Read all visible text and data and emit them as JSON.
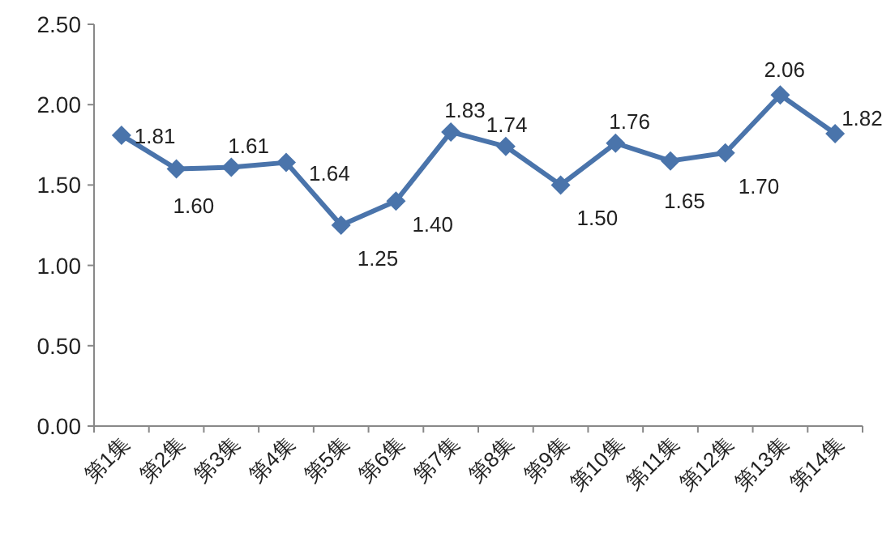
{
  "chart_data": {
    "type": "line",
    "categories": [
      "第1集",
      "第2集",
      "第3集",
      "第4集",
      "第5集",
      "第6集",
      "第7集",
      "第8集",
      "第9集",
      "第10集",
      "第11集",
      "第12集",
      "第13集",
      "第14集"
    ],
    "series": [
      {
        "color": "#4a74ab",
        "values": [
          1.81,
          1.6,
          1.61,
          1.64,
          1.25,
          1.4,
          1.83,
          1.74,
          1.5,
          1.76,
          1.65,
          1.7,
          2.06,
          1.82
        ]
      }
    ],
    "ylim": [
      0,
      2.5
    ],
    "yticks": [
      {
        "value": 0,
        "label": "0.00"
      },
      {
        "value": 0.5,
        "label": "0.50"
      },
      {
        "value": 1,
        "label": "1.00"
      },
      {
        "value": 1.5,
        "label": "1.50"
      },
      {
        "value": 2,
        "label": "2.00"
      },
      {
        "value": 2.5,
        "label": "2.50"
      }
    ],
    "value_labels": [
      "1.81",
      "1.60",
      "1.61",
      "1.64",
      "1.25",
      "1.40",
      "1.83",
      "1.74",
      "1.50",
      "1.76",
      "1.65",
      "1.70",
      "2.06",
      "1.82"
    ],
    "marker": "diamond",
    "line_style": "solid",
    "grid": false
  }
}
